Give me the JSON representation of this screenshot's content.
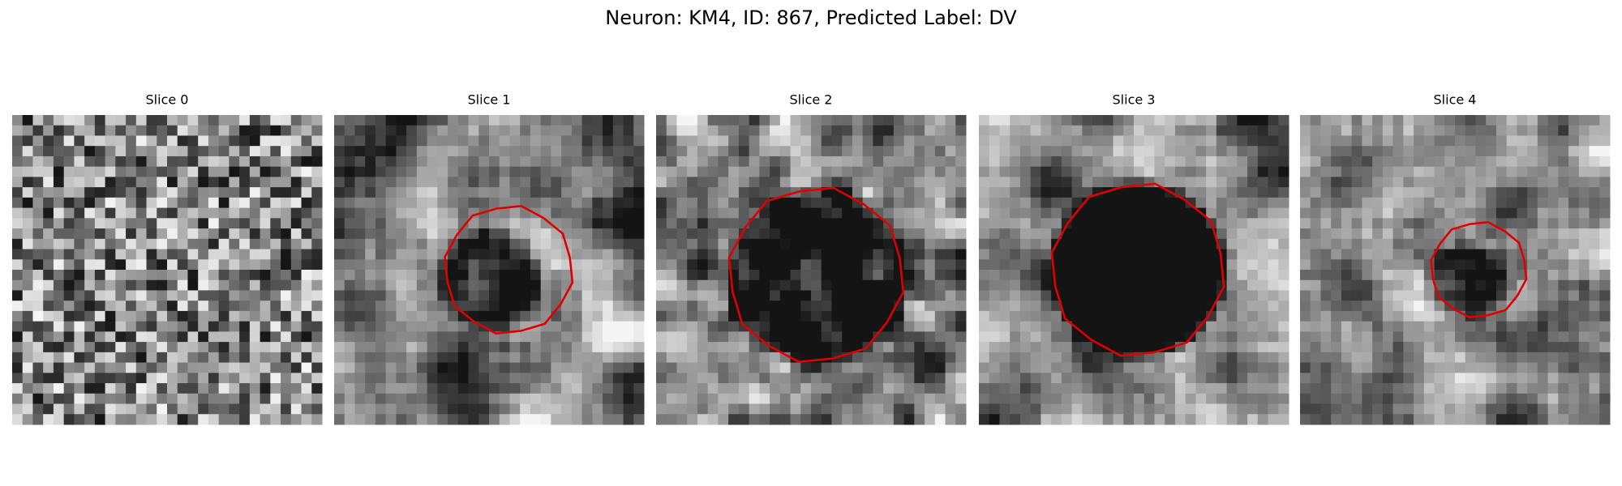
{
  "header": {
    "title": "Neuron: KM4, ID: 867, Predicted Label: DV"
  },
  "panels": [
    {
      "title": "Slice 0"
    },
    {
      "title": "Slice 1"
    },
    {
      "title": "Slice 2"
    },
    {
      "title": "Slice 3"
    },
    {
      "title": "Slice 4"
    }
  ]
}
